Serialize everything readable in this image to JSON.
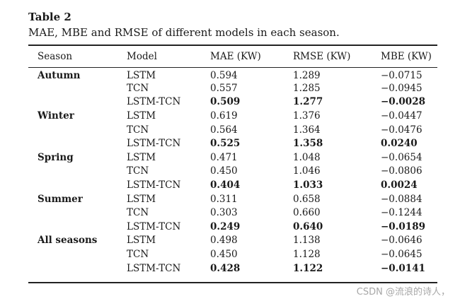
{
  "caption": {
    "label": "Table 2",
    "text": "MAE, MBE and RMSE of different models in each season."
  },
  "table": {
    "headers": [
      "Season",
      "Model",
      "MAE (KW)",
      "RMSE (KW)",
      "MBE (KW)"
    ],
    "rows": [
      {
        "season": "Autumn",
        "model": "LSTM",
        "mae": "0.594",
        "rmse": "1.289",
        "mbe": "−0.0715",
        "bold": false
      },
      {
        "season": "",
        "model": "TCN",
        "mae": "0.557",
        "rmse": "1.285",
        "mbe": "−0.0945",
        "bold": false
      },
      {
        "season": "",
        "model": "LSTM-TCN",
        "mae": "0.509",
        "rmse": "1.277",
        "mbe": "−0.0028",
        "bold": true
      },
      {
        "season": "Winter",
        "model": "LSTM",
        "mae": "0.619",
        "rmse": "1.376",
        "mbe": "−0.0447",
        "bold": false
      },
      {
        "season": "",
        "model": "TCN",
        "mae": "0.564",
        "rmse": "1.364",
        "mbe": "−0.0476",
        "bold": false
      },
      {
        "season": "",
        "model": "LSTM-TCN",
        "mae": "0.525",
        "rmse": "1.358",
        "mbe": "0.0240",
        "bold": true
      },
      {
        "season": "Spring",
        "model": "LSTM",
        "mae": "0.471",
        "rmse": "1.048",
        "mbe": "−0.0654",
        "bold": false
      },
      {
        "season": "",
        "model": "TCN",
        "mae": "0.450",
        "rmse": "1.046",
        "mbe": "−0.0806",
        "bold": false
      },
      {
        "season": "",
        "model": "LSTM-TCN",
        "mae": "0.404",
        "rmse": "1.033",
        "mbe": "0.0024",
        "bold": true
      },
      {
        "season": "Summer",
        "model": "LSTM",
        "mae": "0.311",
        "rmse": "0.658",
        "mbe": "−0.0884",
        "bold": false
      },
      {
        "season": "",
        "model": "TCN",
        "mae": "0.303",
        "rmse": "0.660",
        "mbe": "−0.1244",
        "bold": false
      },
      {
        "season": "",
        "model": "LSTM-TCN",
        "mae": "0.249",
        "rmse": "0.640",
        "mbe": "−0.0189",
        "bold": true
      },
      {
        "season": "All seasons",
        "model": "LSTM",
        "mae": "0.498",
        "rmse": "1.138",
        "mbe": "−0.0646",
        "bold": false
      },
      {
        "season": "",
        "model": "TCN",
        "mae": "0.450",
        "rmse": "1.128",
        "mbe": "−0.0645",
        "bold": false
      },
      {
        "season": "",
        "model": "LSTM-TCN",
        "mae": "0.428",
        "rmse": "1.122",
        "mbe": "−0.0141",
        "bold": true
      }
    ]
  },
  "watermark": "CSDN @流浪的诗人，"
}
